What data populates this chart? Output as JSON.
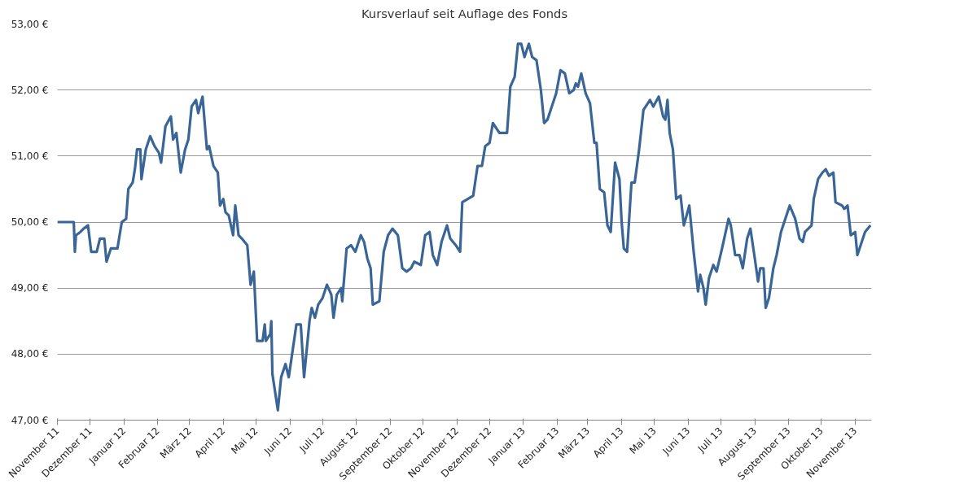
{
  "chart_data": {
    "type": "line",
    "title": "Kursverlauf seit Auflage des Fonds",
    "x": [
      "2011-11-01",
      "2011-11-16",
      "2011-11-17",
      "2011-11-18",
      "2011-11-22",
      "2011-11-25",
      "2011-11-29",
      "2011-12-02",
      "2011-12-07",
      "2011-12-10",
      "2011-12-14",
      "2011-12-16",
      "2011-12-20",
      "2011-12-26",
      "2011-12-30",
      "2012-01-03",
      "2012-01-05",
      "2012-01-09",
      "2012-01-11",
      "2012-01-13",
      "2012-01-16",
      "2012-01-17",
      "2012-01-21",
      "2012-01-25",
      "2012-01-29",
      "2012-02-02",
      "2012-02-04",
      "2012-02-08",
      "2012-02-13",
      "2012-02-15",
      "2012-02-18",
      "2012-02-22",
      "2012-02-26",
      "2012-02-29",
      "2012-03-03",
      "2012-03-07",
      "2012-03-09",
      "2012-03-13",
      "2012-03-17",
      "2012-03-19",
      "2012-03-23",
      "2012-03-27",
      "2012-03-29",
      "2012-04-01",
      "2012-04-03",
      "2012-04-06",
      "2012-04-10",
      "2012-04-12",
      "2012-04-15",
      "2012-04-18",
      "2012-04-23",
      "2012-04-25",
      "2012-04-26",
      "2012-04-29",
      "2012-05-02",
      "2012-05-07",
      "2012-05-09",
      "2012-05-10",
      "2012-05-14",
      "2012-05-15",
      "2012-05-16",
      "2012-05-21",
      "2012-05-24",
      "2012-05-28",
      "2012-05-31",
      "2012-06-07",
      "2012-06-11",
      "2012-06-14",
      "2012-06-19",
      "2012-06-21",
      "2012-06-24",
      "2012-06-27",
      "2012-07-01",
      "2012-07-05",
      "2012-07-09",
      "2012-07-11",
      "2012-07-14",
      "2012-07-18",
      "2012-07-19",
      "2012-07-23",
      "2012-07-27",
      "2012-07-31",
      "2012-08-05",
      "2012-08-08",
      "2012-08-11",
      "2012-08-14",
      "2012-08-16",
      "2012-08-22",
      "2012-08-26",
      "2012-08-30",
      "2012-09-03",
      "2012-09-08",
      "2012-09-12",
      "2012-09-16",
      "2012-09-20",
      "2012-09-23",
      "2012-09-29",
      "2012-10-03",
      "2012-10-07",
      "2012-10-10",
      "2012-10-14",
      "2012-10-18",
      "2012-10-23",
      "2012-10-26",
      "2012-10-31",
      "2012-11-04",
      "2012-11-06",
      "2012-11-11",
      "2012-11-16",
      "2012-11-20",
      "2012-11-24",
      "2012-11-27",
      "2012-12-01",
      "2012-12-04",
      "2012-12-10",
      "2012-12-17",
      "2012-12-20",
      "2012-12-24",
      "2012-12-27",
      "2012-12-30",
      "2013-01-02",
      "2013-01-06",
      "2013-01-09",
      "2013-01-13",
      "2013-01-17",
      "2013-01-20",
      "2013-01-23",
      "2013-01-27",
      "2013-01-31",
      "2013-02-04",
      "2013-02-08",
      "2013-02-12",
      "2013-02-16",
      "2013-02-18",
      "2013-02-20",
      "2013-02-23",
      "2013-02-27",
      "2013-03-03",
      "2013-03-05",
      "2013-03-07",
      "2013-03-09",
      "2013-03-12",
      "2013-03-16",
      "2013-03-19",
      "2013-03-22",
      "2013-03-26",
      "2013-03-30",
      "2013-04-01",
      "2013-04-03",
      "2013-04-06",
      "2013-04-10",
      "2013-04-13",
      "2013-04-17",
      "2013-04-21",
      "2013-04-27",
      "2013-04-30",
      "2013-05-05",
      "2013-05-09",
      "2013-05-11",
      "2013-05-13",
      "2013-05-15",
      "2013-05-18",
      "2013-05-21",
      "2013-05-25",
      "2013-05-28",
      "2013-06-02",
      "2013-06-06",
      "2013-06-10",
      "2013-06-12",
      "2013-06-15",
      "2013-06-17",
      "2013-06-20",
      "2013-06-24",
      "2013-06-27",
      "2013-07-02",
      "2013-07-08",
      "2013-07-10",
      "2013-07-14",
      "2013-07-18",
      "2013-07-21",
      "2013-07-25",
      "2013-07-28",
      "2013-08-01",
      "2013-08-04",
      "2013-08-06",
      "2013-08-09",
      "2013-08-11",
      "2013-08-14",
      "2013-08-18",
      "2013-08-21",
      "2013-08-25",
      "2013-08-29",
      "2013-09-02",
      "2013-09-07",
      "2013-09-11",
      "2013-09-14",
      "2013-09-16",
      "2013-09-22",
      "2013-09-24",
      "2013-09-28",
      "2013-10-02",
      "2013-10-05",
      "2013-10-08",
      "2013-10-12",
      "2013-10-14",
      "2013-10-20",
      "2013-10-22",
      "2013-10-25",
      "2013-10-28",
      "2013-11-01",
      "2013-11-03",
      "2013-11-06",
      "2013-11-10",
      "2013-11-15"
    ],
    "series": [
      {
        "color": "#3a6597",
        "values": [
          50.0,
          50.0,
          49.55,
          49.8,
          49.85,
          49.9,
          49.95,
          49.55,
          49.55,
          49.75,
          49.75,
          49.4,
          49.6,
          49.6,
          50.0,
          50.05,
          50.5,
          50.6,
          50.8,
          51.1,
          51.1,
          50.65,
          51.1,
          51.3,
          51.15,
          51.05,
          50.9,
          51.45,
          51.6,
          51.25,
          51.35,
          50.75,
          51.1,
          51.25,
          51.75,
          51.85,
          51.65,
          51.9,
          51.1,
          51.15,
          50.85,
          50.75,
          50.25,
          50.35,
          50.15,
          50.1,
          49.8,
          50.25,
          49.8,
          49.75,
          49.65,
          49.25,
          49.05,
          49.25,
          48.2,
          48.2,
          48.45,
          48.2,
          48.3,
          48.5,
          47.7,
          47.15,
          47.65,
          47.85,
          47.65,
          48.45,
          48.45,
          47.65,
          48.5,
          48.7,
          48.55,
          48.75,
          48.85,
          49.05,
          48.9,
          48.55,
          48.9,
          49.0,
          48.8,
          49.6,
          49.65,
          49.55,
          49.8,
          49.7,
          49.45,
          49.3,
          48.75,
          48.8,
          49.55,
          49.8,
          49.9,
          49.8,
          49.3,
          49.25,
          49.3,
          49.4,
          49.35,
          49.8,
          49.85,
          49.5,
          49.35,
          49.7,
          49.95,
          49.75,
          49.65,
          49.55,
          50.3,
          50.35,
          50.4,
          50.85,
          50.85,
          51.15,
          51.2,
          51.5,
          51.35,
          51.35,
          52.05,
          52.2,
          52.7,
          52.7,
          52.5,
          52.7,
          52.5,
          52.45,
          52.0,
          51.5,
          51.55,
          51.75,
          51.95,
          52.3,
          52.25,
          51.95,
          52.0,
          52.1,
          52.05,
          52.25,
          51.95,
          51.8,
          51.5,
          51.2,
          51.2,
          50.5,
          50.45,
          49.95,
          49.85,
          50.9,
          50.65,
          50.0,
          49.6,
          49.55,
          50.6,
          50.6,
          51.1,
          51.7,
          51.85,
          51.75,
          51.9,
          51.6,
          51.55,
          51.85,
          51.35,
          51.1,
          50.35,
          50.4,
          49.95,
          50.25,
          49.55,
          48.95,
          49.2,
          49.0,
          48.75,
          49.15,
          49.35,
          49.25,
          49.6,
          50.05,
          49.95,
          49.5,
          49.5,
          49.3,
          49.75,
          49.9,
          49.45,
          49.1,
          49.3,
          49.3,
          48.7,
          48.85,
          49.3,
          49.5,
          49.85,
          50.05,
          50.25,
          50.05,
          49.75,
          49.7,
          49.85,
          49.95,
          50.35,
          50.65,
          50.75,
          50.8,
          50.7,
          50.75,
          50.3,
          50.25,
          50.2,
          50.25,
          49.8,
          49.85,
          49.5,
          49.65,
          49.85,
          49.95
        ]
      }
    ],
    "xlim": [
      "2011-11-01",
      "2013-11-16"
    ],
    "xticks": [
      {
        "value": "2011-11-01",
        "label": "November 11"
      },
      {
        "value": "2011-12-01",
        "label": "Dezember 11"
      },
      {
        "value": "2012-01-01",
        "label": "Januar 12"
      },
      {
        "value": "2012-02-01",
        "label": "Februar 12"
      },
      {
        "value": "2012-03-01",
        "label": "März 12"
      },
      {
        "value": "2012-04-01",
        "label": "April 12"
      },
      {
        "value": "2012-05-01",
        "label": "Mai 12"
      },
      {
        "value": "2012-06-01",
        "label": "Juni 12"
      },
      {
        "value": "2012-07-01",
        "label": "Juli 12"
      },
      {
        "value": "2012-08-01",
        "label": "August 12"
      },
      {
        "value": "2012-09-01",
        "label": "September 12"
      },
      {
        "value": "2012-10-01",
        "label": "Oktober 12"
      },
      {
        "value": "2012-11-01",
        "label": "November 12"
      },
      {
        "value": "2012-12-01",
        "label": "Dezember 12"
      },
      {
        "value": "2013-01-01",
        "label": "Januar 13"
      },
      {
        "value": "2013-02-01",
        "label": "Februar 13"
      },
      {
        "value": "2013-03-01",
        "label": "März 13"
      },
      {
        "value": "2013-04-01",
        "label": "April 13"
      },
      {
        "value": "2013-05-01",
        "label": "Mai 13"
      },
      {
        "value": "2013-06-01",
        "label": "Juni 13"
      },
      {
        "value": "2013-07-01",
        "label": "Juli 13"
      },
      {
        "value": "2013-08-01",
        "label": "August 13"
      },
      {
        "value": "2013-09-01",
        "label": "September 13"
      },
      {
        "value": "2013-10-01",
        "label": "Oktober 13"
      },
      {
        "value": "2013-11-01",
        "label": "November 13"
      }
    ],
    "ylim": [
      47,
      53
    ],
    "yticks": [
      {
        "value": 47,
        "label": "47,00 €"
      },
      {
        "value": 48,
        "label": "48,00 €"
      },
      {
        "value": 49,
        "label": "49,00 €"
      },
      {
        "value": 50,
        "label": "50,00 €"
      },
      {
        "value": 51,
        "label": "51,00 €"
      },
      {
        "value": 52,
        "label": "52,00 €"
      },
      {
        "value": 53,
        "label": "53,00 €"
      }
    ],
    "grid": "y",
    "line_style": "solid"
  }
}
